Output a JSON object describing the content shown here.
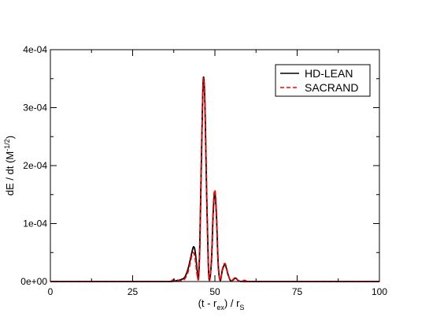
{
  "chart_data": {
    "type": "line",
    "xlabel": {
      "main": "(t - r",
      "sub1": "ex",
      "mid": ") / r",
      "sub2": "S"
    },
    "ylabel": {
      "main": "dE / dt (M",
      "sup": "-1/2",
      "end": ")"
    },
    "xlim": [
      0,
      100
    ],
    "ylim": [
      0,
      0.0004
    ],
    "x_ticks": [
      0,
      25,
      50,
      75,
      100
    ],
    "x_tick_labels": [
      "0",
      "25",
      "50",
      "75",
      "100"
    ],
    "y_ticks": [
      0,
      0.0001,
      0.0002,
      0.0003,
      0.0004
    ],
    "y_tick_labels": [
      "0e+00",
      "1e-04",
      "2e-04",
      "3e-04",
      "4e-04"
    ],
    "grid": false,
    "legend_position": "top-right",
    "series": [
      {
        "name": "HD-LEAN",
        "color": "#000000",
        "dash": "solid",
        "points": [
          [
            0,
            0
          ],
          [
            30,
            0
          ],
          [
            36,
            0
          ],
          [
            38,
            1e-06
          ],
          [
            40,
            4e-06
          ],
          [
            41,
            9e-06
          ],
          [
            42,
            2.5e-05
          ],
          [
            43,
            5e-05
          ],
          [
            43.5,
            6e-05
          ],
          [
            44,
            5.2e-05
          ],
          [
            44.6,
            2e-05
          ],
          [
            45.0,
            5e-06
          ],
          [
            45.4,
            6e-05
          ],
          [
            45.8,
            0.00018
          ],
          [
            46.3,
            0.00032
          ],
          [
            46.6,
            0.000352
          ],
          [
            47.0,
            0.0003
          ],
          [
            47.5,
            0.00015
          ],
          [
            48.0,
            3e-05
          ],
          [
            48.4,
            3e-06
          ],
          [
            49.0,
            4e-05
          ],
          [
            49.5,
            0.00012
          ],
          [
            50.0,
            0.000153
          ],
          [
            50.5,
            0.00011
          ],
          [
            51.0,
            3e-05
          ],
          [
            51.6,
            2e-06
          ],
          [
            52.3,
            2e-05
          ],
          [
            53.1,
            2.9e-05
          ],
          [
            54.0,
            1.2e-05
          ],
          [
            54.8,
            1e-06
          ],
          [
            55.6,
            3e-06
          ],
          [
            56.3,
            6e-06
          ],
          [
            57.0,
            2e-06
          ],
          [
            58,
            0
          ],
          [
            59.0,
            1e-06
          ],
          [
            60,
            0
          ],
          [
            62,
            0
          ],
          [
            100,
            0
          ]
        ]
      },
      {
        "name": "SACRAND",
        "color": "#ff0000",
        "dash": "dashed",
        "points": [
          [
            0,
            0
          ],
          [
            30,
            0
          ],
          [
            36,
            0
          ],
          [
            37,
            2e-06
          ],
          [
            38,
            4e-06
          ],
          [
            39,
            2e-06
          ],
          [
            40,
            1e-06
          ],
          [
            41,
            6e-06
          ],
          [
            42,
            2e-05
          ],
          [
            43,
            4.5e-05
          ],
          [
            43.5,
            5e-05
          ],
          [
            44,
            4e-05
          ],
          [
            44.6,
            1.2e-05
          ],
          [
            45.0,
            4e-06
          ],
          [
            45.4,
            5.5e-05
          ],
          [
            45.8,
            0.000175
          ],
          [
            46.3,
            0.000318
          ],
          [
            46.6,
            0.00035
          ],
          [
            47.0,
            0.000302
          ],
          [
            47.5,
            0.000155
          ],
          [
            48.0,
            3.2e-05
          ],
          [
            48.4,
            2e-06
          ],
          [
            49.0,
            4.5e-05
          ],
          [
            49.5,
            0.000128
          ],
          [
            50.0,
            0.000158
          ],
          [
            50.5,
            0.000115
          ],
          [
            51.0,
            3.2e-05
          ],
          [
            51.6,
            2e-06
          ],
          [
            52.3,
            2.2e-05
          ],
          [
            53.1,
            3.1e-05
          ],
          [
            54.0,
            1.3e-05
          ],
          [
            54.8,
            1e-06
          ],
          [
            55.6,
            4e-06
          ],
          [
            56.3,
            7e-06
          ],
          [
            57.0,
            2e-06
          ],
          [
            58,
            0
          ],
          [
            59.0,
            2e-06
          ],
          [
            60,
            0
          ],
          [
            62,
            0
          ],
          [
            100,
            0
          ]
        ]
      }
    ]
  }
}
